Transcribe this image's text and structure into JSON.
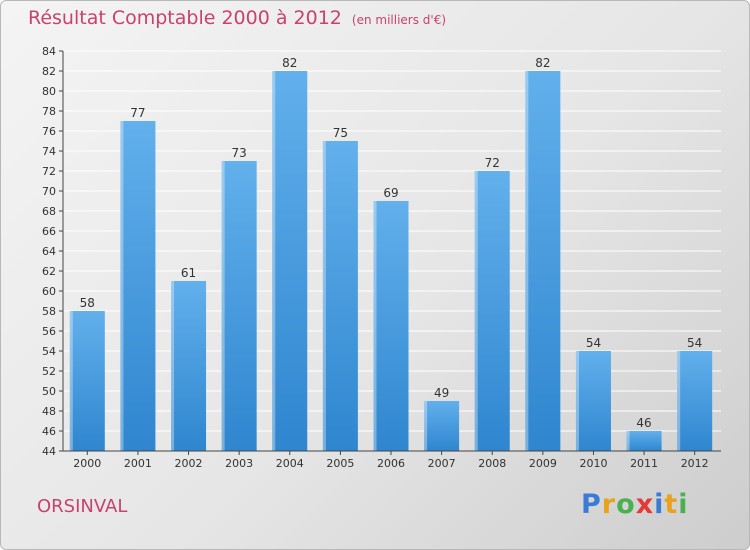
{
  "title": "Résultat Comptable 2000 à 2012",
  "subtitle": "(en milliers d'€)",
  "city": "ORSINVAL",
  "logo": {
    "text": "Proxiti",
    "letters": [
      "P",
      "r",
      "o",
      "x",
      "i",
      "t",
      "i"
    ],
    "colors": [
      "#3a7bd5",
      "#e8a21c",
      "#4caf50",
      "#e53935",
      "#3a7bd5",
      "#e8a21c",
      "#4caf50"
    ]
  },
  "colors": {
    "bar": "#3e96dc",
    "bar_light": "#62b0ec",
    "accent": "#c8426c",
    "grid": "#ffffff"
  },
  "chart_data": {
    "type": "bar",
    "title": "Résultat Comptable 2000 à 2012",
    "subtitle": "(en milliers d'€)",
    "xlabel": "",
    "ylabel": "",
    "categories": [
      "2000",
      "2001",
      "2002",
      "2003",
      "2004",
      "2005",
      "2006",
      "2007",
      "2008",
      "2009",
      "2010",
      "2011",
      "2012"
    ],
    "values": [
      58,
      77,
      61,
      73,
      82,
      75,
      69,
      49,
      72,
      82,
      54,
      46,
      54
    ],
    "ylim": [
      44,
      84
    ],
    "yticks": [
      44,
      46,
      48,
      50,
      52,
      54,
      56,
      58,
      60,
      62,
      64,
      66,
      68,
      70,
      72,
      74,
      76,
      78,
      80,
      82,
      84
    ],
    "grid": true,
    "data_labels": true
  }
}
